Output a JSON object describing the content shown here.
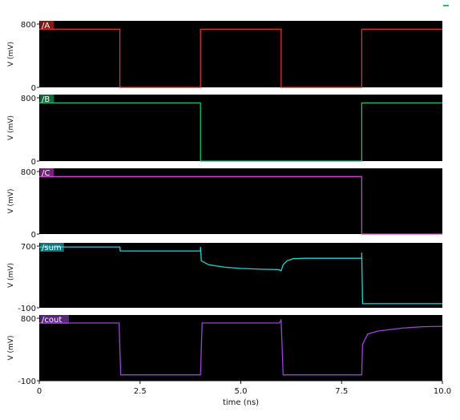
{
  "chart_data": [
    {
      "type": "line",
      "signal": "/A",
      "color": "#e0302a",
      "ylabel": "V (mV)",
      "ylim": [
        0,
        800
      ],
      "yticks": [
        "0",
        "800"
      ],
      "xlim": [
        0,
        10
      ],
      "points": [
        [
          0,
          700
        ],
        [
          2,
          700
        ],
        [
          2,
          0
        ],
        [
          4,
          0
        ],
        [
          4,
          700
        ],
        [
          6,
          700
        ],
        [
          6,
          0
        ],
        [
          8,
          0
        ],
        [
          8,
          700
        ],
        [
          10,
          700
        ]
      ]
    },
    {
      "type": "line",
      "signal": "/B",
      "color": "#1fc06a",
      "ylabel": "V (mV)",
      "ylim": [
        0,
        800
      ],
      "yticks": [
        "0",
        "800"
      ],
      "xlim": [
        0,
        10
      ],
      "points": [
        [
          0,
          700
        ],
        [
          4,
          700
        ],
        [
          4,
          0
        ],
        [
          8,
          0
        ],
        [
          8,
          700
        ],
        [
          10,
          700
        ]
      ]
    },
    {
      "type": "line",
      "signal": "/C",
      "color": "#d040d8",
      "ylabel": "V (mV)",
      "ylim": [
        0,
        800
      ],
      "yticks": [
        "0",
        "800"
      ],
      "xlim": [
        0,
        10
      ],
      "points": [
        [
          0,
          700
        ],
        [
          8,
          700
        ],
        [
          8,
          0
        ],
        [
          10,
          0
        ]
      ]
    },
    {
      "type": "line",
      "signal": "/sum",
      "color": "#2ad0d8",
      "ylabel": "V (mV)",
      "ylim": [
        -100,
        700
      ],
      "yticks": [
        "-100",
        "700"
      ],
      "xlim": [
        0,
        10
      ],
      "points": [
        [
          0,
          650
        ],
        [
          2,
          650
        ],
        [
          2.005,
          600
        ],
        [
          4,
          600
        ],
        [
          4,
          650
        ],
        [
          4.02,
          480
        ],
        [
          4.2,
          430
        ],
        [
          4.6,
          400
        ],
        [
          5,
          385
        ],
        [
          5.5,
          375
        ],
        [
          5.95,
          370
        ],
        [
          6,
          355
        ],
        [
          6.05,
          430
        ],
        [
          6.15,
          480
        ],
        [
          6.3,
          505
        ],
        [
          6.6,
          510
        ],
        [
          8,
          510
        ],
        [
          8,
          580
        ],
        [
          8.02,
          -50
        ],
        [
          10,
          -50
        ]
      ]
    },
    {
      "type": "line",
      "signal": "/cout",
      "color": "#a040e0",
      "ylabel": "V (mV)",
      "ylim": [
        -100,
        800
      ],
      "yticks": [
        "-100",
        "800"
      ],
      "xlim": [
        0,
        10
      ],
      "xticks": [
        "0",
        "2.5",
        "5.0",
        "7.5",
        "10.0"
      ],
      "xlabel": "time (ns)",
      "points": [
        [
          0,
          690
        ],
        [
          1.98,
          690
        ],
        [
          2.02,
          -20
        ],
        [
          4,
          -20
        ],
        [
          4.04,
          690
        ],
        [
          5.95,
          690
        ],
        [
          6,
          730
        ],
        [
          6.05,
          -20
        ],
        [
          8,
          -20
        ],
        [
          8.02,
          400
        ],
        [
          8.15,
          540
        ],
        [
          8.4,
          580
        ],
        [
          9,
          620
        ],
        [
          9.5,
          640
        ],
        [
          10,
          645
        ]
      ]
    }
  ]
}
